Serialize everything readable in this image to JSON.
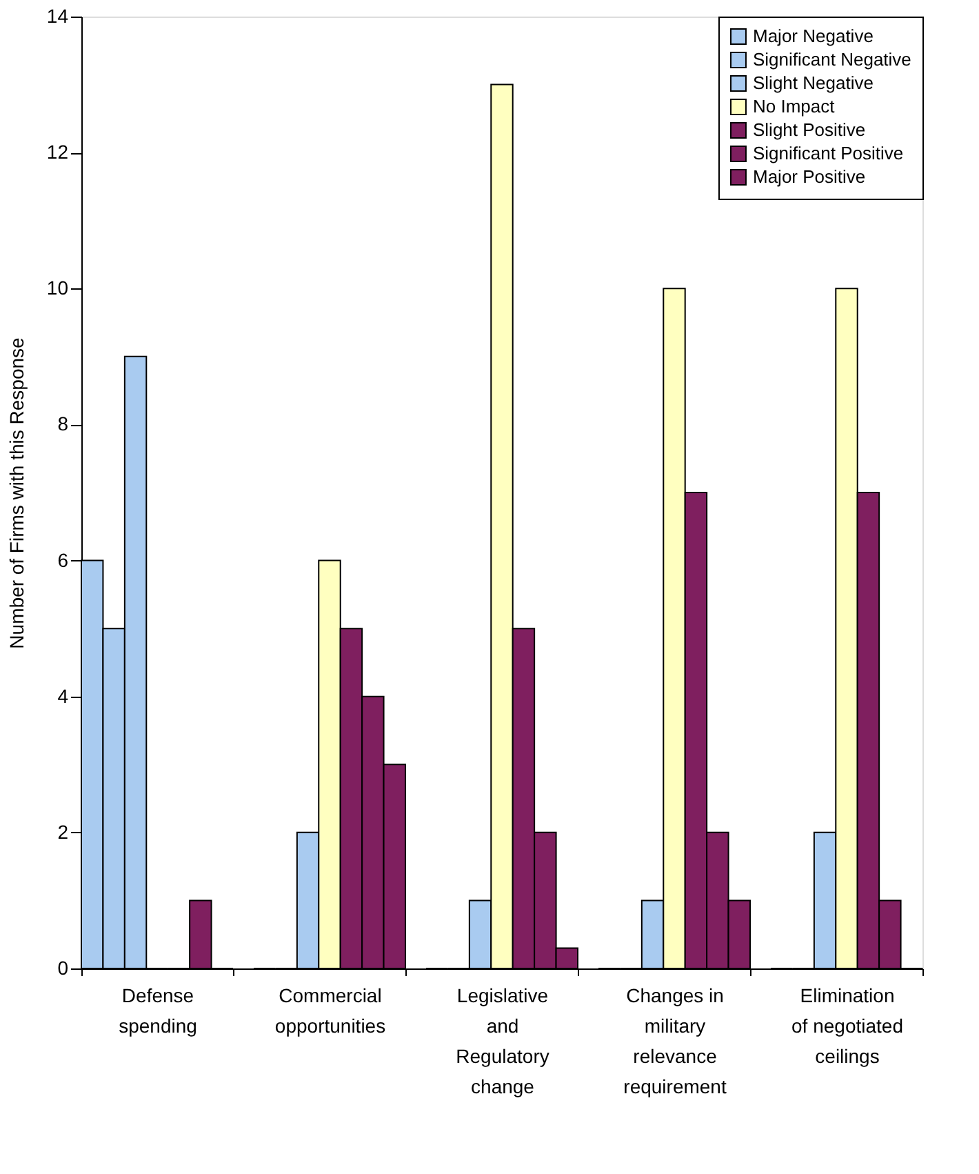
{
  "chart_data": {
    "type": "bar",
    "ylabel": "Number of Firms with this Response",
    "categories": [
      "Defense spending",
      "Commercial opportunities",
      "Legislative and Regulatory change",
      "Changes in military relevance requirement",
      "Elimination of negotiated ceilings"
    ],
    "series": [
      {
        "name": "Major Negative",
        "color": "#a9cbf0",
        "values": [
          6,
          0,
          0,
          0,
          0
        ]
      },
      {
        "name": "Significant Negative",
        "color": "#a9cbf0",
        "values": [
          5,
          0,
          0,
          0,
          0
        ]
      },
      {
        "name": "Slight Negative",
        "color": "#a9cbf0",
        "values": [
          9,
          2,
          1,
          1,
          2
        ]
      },
      {
        "name": "No Impact",
        "color": "#ffffc0",
        "values": [
          0,
          6,
          13,
          10,
          10
        ]
      },
      {
        "name": "Slight Positive",
        "color": "#7f1f5f",
        "values": [
          0,
          5,
          5,
          7,
          7
        ]
      },
      {
        "name": "Significant Positive",
        "color": "#7f1f5f",
        "values": [
          1,
          4,
          2,
          2,
          1
        ]
      },
      {
        "name": "Major Positive",
        "color": "#7f1f5f",
        "values": [
          0,
          3,
          0.3,
          1,
          0
        ]
      }
    ],
    "ylim": [
      0,
      14
    ],
    "yticks": [
      0,
      2,
      4,
      6,
      8,
      10,
      12,
      14
    ],
    "grid": false,
    "legend": "top right"
  }
}
